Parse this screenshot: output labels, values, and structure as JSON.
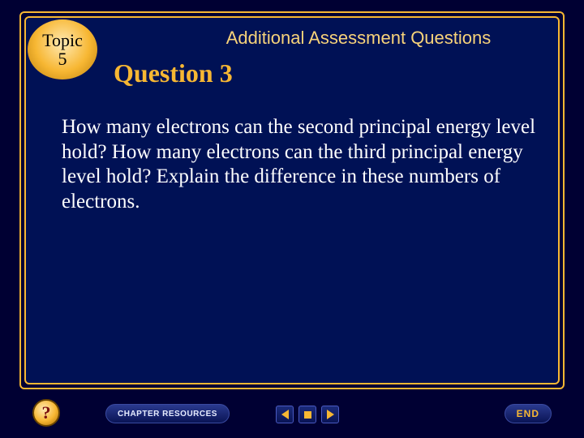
{
  "tab": {
    "line1": "Topic",
    "line2": "5"
  },
  "header": {
    "title": "Additional Assessment Questions"
  },
  "question": {
    "heading": "Question 3",
    "body": "How many electrons can the second principal energy level hold?  How many electrons can the third principal energy level hold?  Explain the difference in these numbers of electrons."
  },
  "nav": {
    "help": "?",
    "chapter": "CHAPTER RESOURCES",
    "end": "END"
  },
  "style": {
    "background": "#001155",
    "frame_color": "#f7b733",
    "heading_color": "#f7b733",
    "header_color": "#f7d37a",
    "body_color": "#ffffff",
    "tab_gradient": [
      "#ffe9b3",
      "#f7b733",
      "#b87c0a"
    ],
    "button_gradient": [
      "#2a3a8f",
      "#0a1455"
    ],
    "heading_fontsize": 32,
    "body_fontsize": 25,
    "header_fontsize": 22
  }
}
